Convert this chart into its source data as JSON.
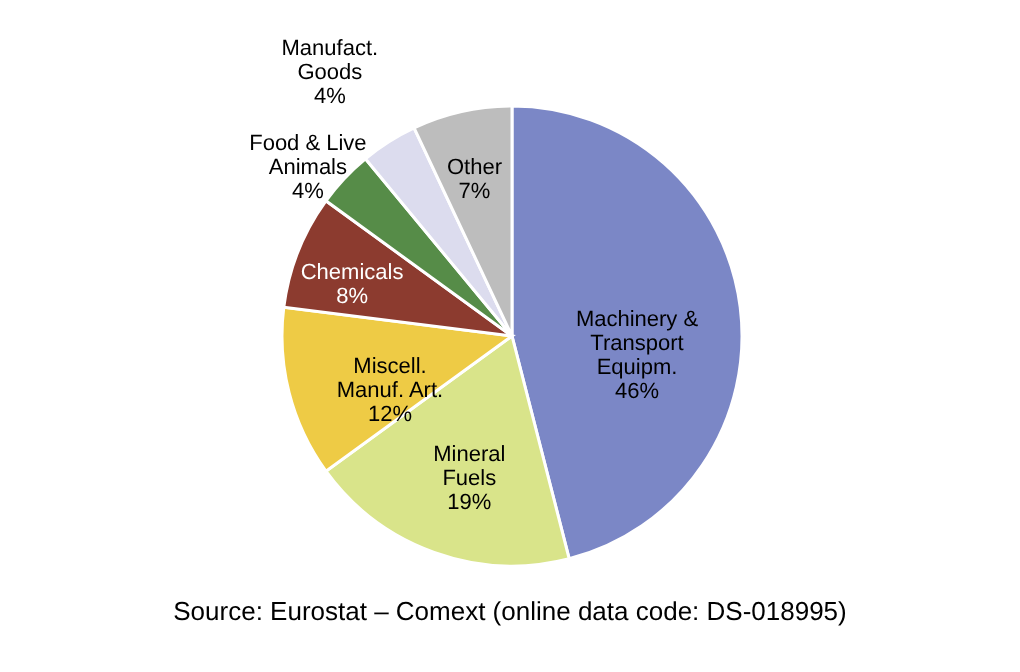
{
  "chart_data": {
    "type": "pie",
    "categories": [
      "Machinery & Transport Equipm.",
      "Mineral Fuels",
      "Miscell. Manuf. Art.",
      "Chemicals",
      "Food & Live Animals",
      "Manufact. Goods",
      "Other"
    ],
    "values": [
      46,
      19,
      12,
      8,
      4,
      4,
      7
    ],
    "value_labels": [
      "46%",
      "19%",
      "12%",
      "8%",
      "4%",
      "4%",
      "7%"
    ],
    "colors": [
      "#7b87c6",
      "#d9e48a",
      "#eecb45",
      "#8c3b2f",
      "#568c48",
      "#dcdcee",
      "#bdbdbd"
    ],
    "annotations": [
      "Source:  Eurostat – Comext (online data code: DS-018995)"
    ]
  }
}
